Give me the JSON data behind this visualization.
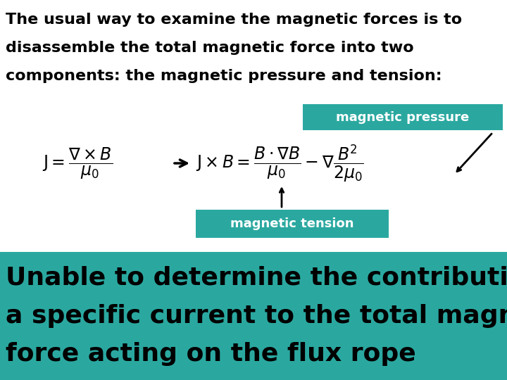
{
  "bg_color": "#ffffff",
  "teal_color": "#2aa8a0",
  "text_color_black": "#000000",
  "header_text_line1": "The usual way to examine the magnetic forces is to",
  "header_text_line2": "disassemble the total magnetic force into two",
  "header_text_line3": "components: the magnetic pressure and tension:",
  "bottom_bg_color": "#2aa8a0",
  "bottom_text_line1": "Unable to determine the contribution by",
  "bottom_text_line2": "a specific current to the total magnetic",
  "bottom_text_line3": "force acting on the flux rope",
  "label_pressure": "magnetic pressure",
  "label_tension": "magnetic tension",
  "figsize": [
    7.2,
    5.4
  ],
  "dpi": 100
}
